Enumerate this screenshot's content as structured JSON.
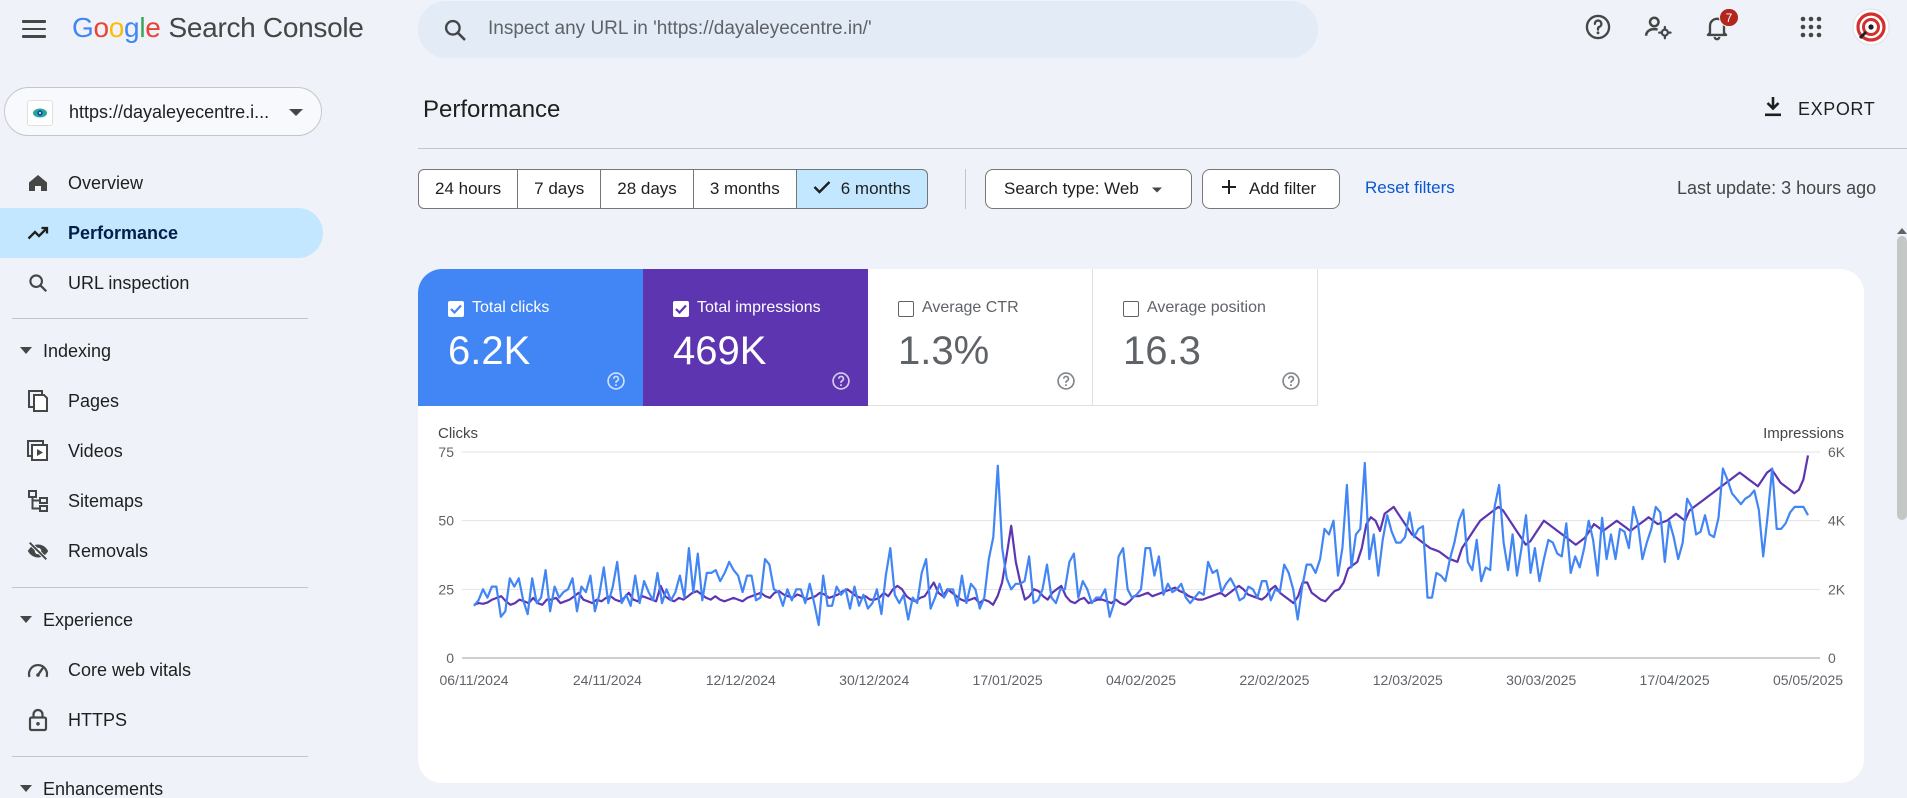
{
  "app": {
    "logo_parts": [
      "G",
      "o",
      "o",
      "g",
      "l",
      "e"
    ],
    "product": "Search Console"
  },
  "search": {
    "placeholder": "Inspect any URL in 'https://dayaleyecentre.in/'"
  },
  "notifications": {
    "count": "7"
  },
  "property": {
    "label": "https://dayaleyecentre.i..."
  },
  "sidebar": {
    "items": [
      {
        "label": "Overview",
        "icon": "home-icon"
      },
      {
        "label": "Performance",
        "icon": "trending-up-icon",
        "active": true
      },
      {
        "label": "URL inspection",
        "icon": "search-icon"
      }
    ],
    "indexing": {
      "title": "Indexing",
      "items": [
        {
          "label": "Pages",
          "icon": "pages-icon"
        },
        {
          "label": "Videos",
          "icon": "video-icon"
        },
        {
          "label": "Sitemaps",
          "icon": "sitemap-icon"
        },
        {
          "label": "Removals",
          "icon": "eye-off-icon"
        }
      ]
    },
    "experience": {
      "title": "Experience",
      "items": [
        {
          "label": "Core web vitals",
          "icon": "speed-icon"
        },
        {
          "label": "HTTPS",
          "icon": "lock-icon"
        }
      ]
    },
    "enhancements": {
      "title": "Enhancements"
    }
  },
  "main": {
    "title": "Performance",
    "export_label": "EXPORT",
    "date_ranges": [
      "24 hours",
      "7 days",
      "28 days",
      "3 months",
      "6 months"
    ],
    "selected_range": "6 months",
    "search_type": "Search type: Web",
    "add_filter": "Add filter",
    "reset_filters": "Reset filters",
    "last_update": "Last update: 3 hours ago"
  },
  "metrics": [
    {
      "label": "Total clicks",
      "value": "6.2K",
      "checked": true,
      "color": "#4285f4"
    },
    {
      "label": "Total impressions",
      "value": "469K",
      "checked": true,
      "color": "#5e35b1"
    },
    {
      "label": "Average CTR",
      "value": "1.3%",
      "checked": false
    },
    {
      "label": "Average position",
      "value": "16.3",
      "checked": false
    }
  ],
  "chart_data": {
    "type": "line",
    "left_axis_label": "Clicks",
    "right_axis_label": "Impressions",
    "left_ticks": [
      "75",
      "50",
      "25",
      "0"
    ],
    "right_ticks": [
      "6K",
      "4K",
      "2K",
      "0"
    ],
    "left_range": [
      0,
      75
    ],
    "right_range": [
      0,
      6000
    ],
    "x_tick_labels": [
      "06/11/2024",
      "24/11/2024",
      "12/12/2024",
      "30/12/2024",
      "17/01/2025",
      "04/02/2025",
      "22/02/2025",
      "12/03/2025",
      "30/03/2025",
      "17/04/2025",
      "05/05/2025"
    ],
    "x_start": "06/11/2024",
    "x_end": "05/05/2025",
    "grid": true,
    "series": [
      {
        "name": "Clicks",
        "axis": "left",
        "color": "#4285f4",
        "values": [
          19,
          21,
          25,
          22,
          26,
          26,
          15,
          17,
          29,
          26,
          29,
          21,
          16,
          29,
          20,
          22,
          32,
          17,
          26,
          22,
          24,
          25,
          29,
          17,
          26,
          24,
          30,
          17,
          23,
          33,
          20,
          26,
          35,
          20,
          23,
          19,
          30,
          20,
          28,
          24,
          21,
          31,
          20,
          25,
          21,
          24,
          30,
          22,
          40,
          24,
          38,
          21,
          31,
          31,
          32,
          28,
          31,
          35,
          32,
          30,
          24,
          30,
          30,
          21,
          22,
          36,
          34,
          25,
          24,
          19,
          25,
          21,
          25,
          25,
          20,
          27,
          20,
          12,
          30,
          19,
          19,
          26,
          23,
          25,
          18,
          26,
          19,
          23,
          18,
          20,
          25,
          16,
          30,
          40,
          23,
          20,
          23,
          14,
          22,
          20,
          31,
          36,
          18,
          22,
          27,
          22,
          25,
          25,
          19,
          30,
          20,
          27,
          25,
          18,
          22,
          36,
          44,
          70,
          40,
          29,
          25,
          27,
          27,
          28,
          37,
          20,
          21,
          25,
          34,
          22,
          20,
          25,
          25,
          35,
          38,
          22,
          28,
          25,
          20,
          22,
          22,
          25,
          15,
          20,
          37,
          40,
          25,
          22,
          23,
          25,
          40,
          40,
          30,
          37,
          23,
          27,
          24,
          25,
          27,
          22,
          20,
          22,
          24,
          23,
          35,
          31,
          32,
          24,
          27,
          29,
          26,
          21,
          22,
          26,
          25,
          22,
          28,
          28,
          21,
          25,
          24,
          34,
          31,
          25,
          14,
          26,
          34,
          34,
          31,
          36,
          47,
          45,
          50,
          30,
          40,
          63,
          33,
          45,
          47,
          71,
          36,
          45,
          30,
          43,
          52,
          46,
          42,
          42,
          44,
          53,
          44,
          47,
          48,
          22,
          22,
          31,
          30,
          28,
          36,
          42,
          50,
          54,
          35,
          32,
          43,
          28,
          33,
          32,
          55,
          63,
          42,
          32,
          45,
          30,
          40,
          52,
          31,
          40,
          28,
          36,
          43,
          42,
          38,
          37,
          49,
          31,
          37,
          33,
          40,
          50,
          43,
          30,
          51,
          36,
          45,
          36,
          47,
          46,
          40,
          55,
          49,
          36,
          42,
          47,
          55,
          53,
          35,
          50,
          44,
          36,
          42,
          58,
          55,
          45,
          46,
          52,
          45,
          44,
          51,
          69,
          65,
          60,
          58,
          56,
          58,
          59,
          61,
          54,
          37,
          52,
          69,
          47,
          47,
          49,
          53,
          55,
          55,
          55,
          52
        ],
        "__note": "sampled approximate daily values"
      },
      {
        "name": "Impressions",
        "axis": "right",
        "color": "#5e35b1",
        "values": [
          1550,
          1600,
          1580,
          1620,
          1700,
          1750,
          1800,
          1650,
          1550,
          1600,
          1700,
          1650,
          1600,
          1750,
          1600,
          1550,
          1700,
          1700,
          1750,
          1600,
          1650,
          1700,
          1800,
          1900,
          1700,
          1650,
          1600,
          1700,
          1650,
          1750,
          1800,
          1700,
          1650,
          1750,
          1900,
          1700,
          1650,
          1800,
          1750,
          1700,
          1650,
          2100,
          1800,
          1700,
          1650,
          1750,
          1700,
          1800,
          1900,
          1950,
          1850,
          1750,
          1700,
          1800,
          1700,
          1650,
          1700,
          1750,
          1700,
          1650,
          1750,
          1800,
          1850,
          1900,
          1800,
          1750,
          1900,
          1950,
          1850,
          1800,
          1750,
          1850,
          1800,
          1700,
          1750,
          1800,
          1900,
          1850,
          1750,
          1800,
          1850,
          1950,
          2000,
          1900,
          1800,
          1750,
          1800,
          1700,
          1700,
          1750,
          1900,
          1800,
          2000,
          2100,
          2000,
          1800,
          1700,
          1650,
          1750,
          1800,
          2000,
          2200,
          1900,
          1800,
          2000,
          1900,
          1800,
          1700,
          1650,
          1700,
          1750,
          1600,
          1700,
          1650,
          1550,
          1800,
          2200,
          3000,
          3850,
          2800,
          2200,
          1700,
          1800,
          2000,
          1950,
          1800,
          1700,
          1900,
          2000,
          2100,
          1800,
          1650,
          1600,
          1700,
          1750,
          1600,
          1650,
          1700,
          1700,
          1650,
          1600,
          1700,
          1600,
          1550,
          1650,
          1800,
          1800,
          1850,
          1900,
          1800,
          1850,
          1900,
          1950,
          2000,
          2050,
          1950,
          1900,
          1800,
          1750,
          1700,
          1700,
          1750,
          1800,
          1850,
          1900,
          1800,
          1900,
          2000,
          2100,
          2000,
          1850,
          1800,
          1750,
          1700,
          1800,
          2000,
          2100,
          1900,
          1800,
          1700,
          1600,
          1800,
          2200,
          2200,
          1900,
          1800,
          1700,
          1650,
          1800,
          1950,
          2000,
          2200,
          2600,
          2700,
          2800,
          3200,
          3900,
          4100,
          4000,
          3700,
          4200,
          4300,
          4400,
          4200,
          4000,
          3800,
          3600,
          3500,
          3400,
          3300,
          3200,
          3150,
          3100,
          3000,
          2900,
          2850,
          2800,
          3200,
          3400,
          3600,
          3800,
          4000,
          4100,
          4200,
          4300,
          4400,
          4300,
          4100,
          3900,
          3700,
          3500,
          3300,
          3400,
          3600,
          3800,
          4000,
          3900,
          3800,
          3700,
          3600,
          3500,
          3400,
          3300,
          3400,
          3500,
          3700,
          3900,
          3800,
          3700,
          3800,
          3900,
          4000,
          3900,
          3800,
          3700,
          3800,
          3900,
          4000,
          4100,
          4000,
          3900,
          3950,
          4000,
          4100,
          4200,
          4100,
          4000,
          4300,
          4400,
          4500,
          4600,
          4700,
          4800,
          4900,
          5000,
          5100,
          5200,
          5300,
          5400,
          5300,
          5200,
          5100,
          5000,
          5200,
          5400,
          5500,
          5300,
          5100,
          5000,
          4900,
          4800,
          4900,
          5200,
          5900
        ],
        "__note": "sampled approximate daily values"
      }
    ]
  }
}
